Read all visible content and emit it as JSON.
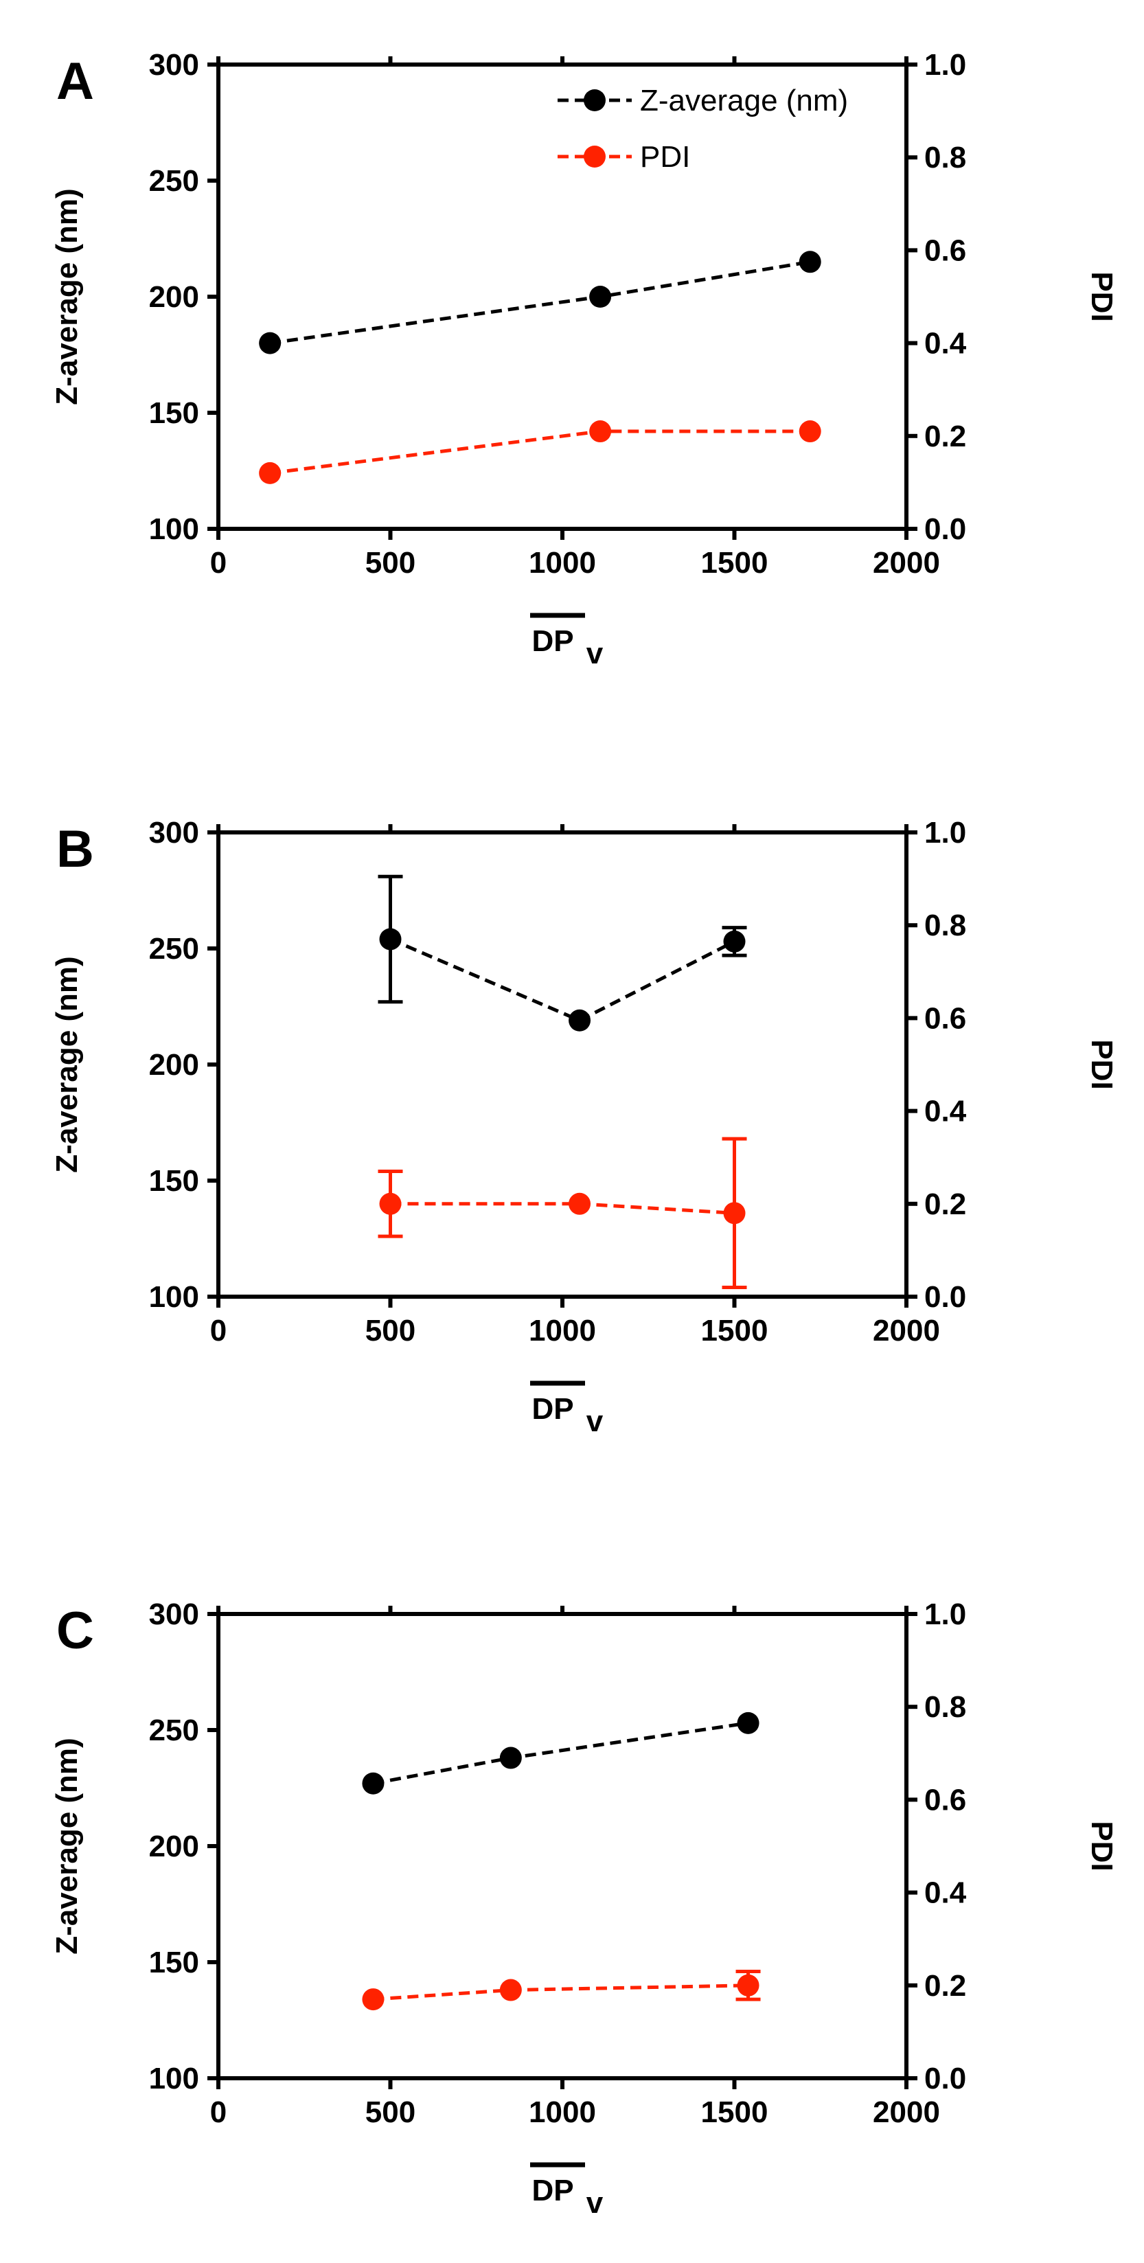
{
  "colors": {
    "z_series": "#000000",
    "pdi_series": "#ff2200",
    "axis": "#000000",
    "background": "#ffffff"
  },
  "chart_data": [
    {
      "panel": "A",
      "type": "line",
      "xlabel": "DP",
      "xlabel_subscript": "v",
      "ylabel": "Z-average (nm)",
      "y2label": "PDI",
      "xlim": [
        0,
        2000
      ],
      "ylim": [
        100,
        300
      ],
      "y2lim": [
        0.0,
        1.0
      ],
      "x_ticks": [
        "0",
        "500",
        "1000",
        "1500",
        "2000"
      ],
      "y_ticks": [
        "100",
        "150",
        "200",
        "250",
        "300"
      ],
      "y2_ticks": [
        "0.0",
        "0.2",
        "0.4",
        "0.6",
        "0.8",
        "1.0"
      ],
      "legend": {
        "position": "top-right",
        "entries": [
          "Z-average (nm)",
          "PDI"
        ]
      },
      "series": [
        {
          "name": "Z-average (nm)",
          "axis": "left",
          "x": [
            150,
            1110,
            1720
          ],
          "values": [
            180,
            200,
            215
          ],
          "err": [
            0,
            0,
            0
          ]
        },
        {
          "name": "PDI",
          "axis": "right",
          "x": [
            150,
            1110,
            1720
          ],
          "values": [
            0.12,
            0.21,
            0.21
          ],
          "err": [
            0,
            0,
            0
          ]
        }
      ]
    },
    {
      "panel": "B",
      "type": "line",
      "xlabel": "DP",
      "xlabel_subscript": "v",
      "ylabel": "Z-average (nm)",
      "y2label": "PDI",
      "xlim": [
        0,
        2000
      ],
      "ylim": [
        100,
        300
      ],
      "y2lim": [
        0.0,
        1.0
      ],
      "x_ticks": [
        "0",
        "500",
        "1000",
        "1500",
        "2000"
      ],
      "y_ticks": [
        "100",
        "150",
        "200",
        "250",
        "300"
      ],
      "y2_ticks": [
        "0.0",
        "0.2",
        "0.4",
        "0.6",
        "0.8",
        "1.0"
      ],
      "legend": null,
      "series": [
        {
          "name": "Z-average (nm)",
          "axis": "left",
          "x": [
            500,
            1050,
            1500
          ],
          "values": [
            254,
            219,
            253
          ],
          "err": [
            27,
            0,
            6
          ]
        },
        {
          "name": "PDI",
          "axis": "right",
          "x": [
            500,
            1050,
            1500
          ],
          "values": [
            0.2,
            0.2,
            0.18
          ],
          "err": [
            0.07,
            0,
            0.16
          ]
        }
      ]
    },
    {
      "panel": "C",
      "type": "line",
      "xlabel": "DP",
      "xlabel_subscript": "v",
      "ylabel": "Z-average (nm)",
      "y2label": "PDI",
      "xlim": [
        0,
        2000
      ],
      "ylim": [
        100,
        300
      ],
      "y2lim": [
        0.0,
        1.0
      ],
      "x_ticks": [
        "0",
        "500",
        "1000",
        "1500",
        "2000"
      ],
      "y_ticks": [
        "100",
        "150",
        "200",
        "250",
        "300"
      ],
      "y2_ticks": [
        "0.0",
        "0.2",
        "0.4",
        "0.6",
        "0.8",
        "1.0"
      ],
      "legend": null,
      "series": [
        {
          "name": "Z-average (nm)",
          "axis": "left",
          "x": [
            450,
            850,
            1540
          ],
          "values": [
            227,
            238,
            253
          ],
          "err": [
            0,
            0,
            0
          ]
        },
        {
          "name": "PDI",
          "axis": "right",
          "x": [
            450,
            850,
            1540
          ],
          "values": [
            0.17,
            0.19,
            0.2
          ],
          "err": [
            0,
            0,
            0.03
          ]
        }
      ]
    }
  ]
}
